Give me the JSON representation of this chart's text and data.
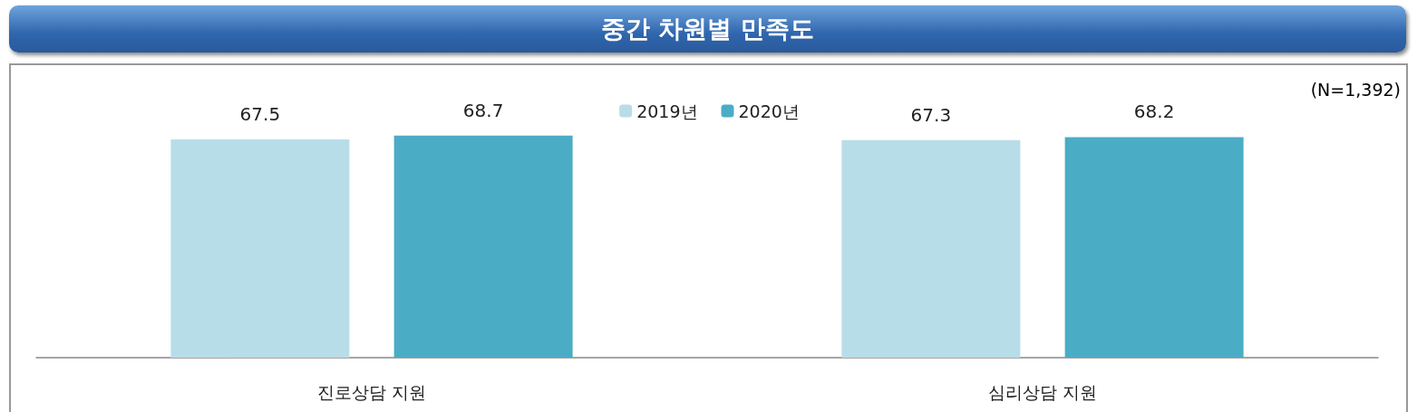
{
  "chart_data": {
    "type": "bar",
    "title": "중간 차원별 만족도",
    "annotations": [
      "(N=1,392)"
    ],
    "categories": [
      "진로상담 지원",
      "심리상담 지원"
    ],
    "series": [
      {
        "name": "2019년",
        "color": "#b7dde8",
        "values": [
          67.5,
          67.3
        ]
      },
      {
        "name": "2020년",
        "color": "#4bacc6",
        "values": [
          68.7,
          68.2
        ]
      }
    ],
    "tick_labels": "x",
    "data_labels": true,
    "legend": "top"
  }
}
